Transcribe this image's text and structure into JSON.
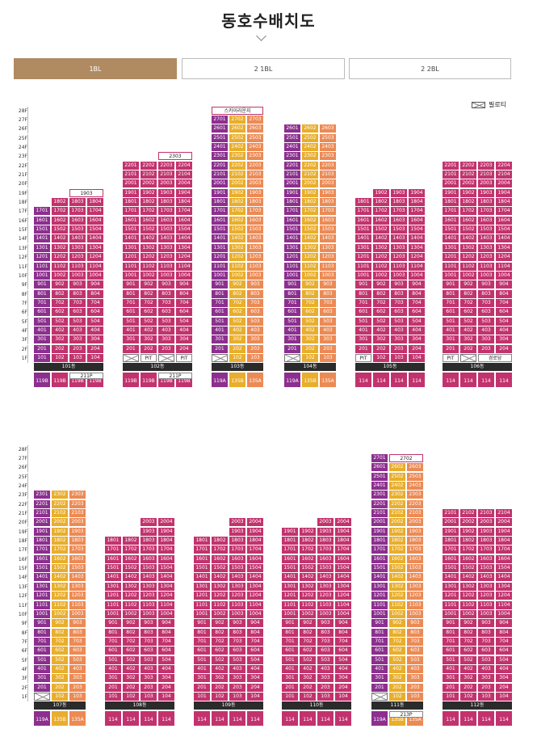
{
  "page": {
    "title": "동호수배치도"
  },
  "tabs": [
    {
      "label": "1BL",
      "active": true
    },
    {
      "label": "2 1BL",
      "active": false
    },
    {
      "label": "2 2BL",
      "active": false
    }
  ],
  "legend": {
    "label": "필로티"
  },
  "floor_axis": {
    "top": [
      "28F",
      "27F",
      "26F",
      "25F",
      "24F",
      "23F",
      "22F",
      "21F",
      "20F",
      "19F",
      "18F",
      "17F",
      "16F",
      "15F",
      "14F",
      "13F",
      "12F",
      "11F",
      "10F",
      "9F",
      "8F",
      "7F",
      "6F",
      "5F",
      "4F",
      "3F",
      "2F",
      "1F"
    ]
  },
  "colors": {
    "magenta": "#c2336e",
    "purple": "#8c2f8e",
    "orange": "#ec8a55",
    "yellow": "#e8ae2c",
    "active_tab": "#b08a61"
  },
  "rows": [
    {
      "buildings": [
        {
          "id": "101",
          "name": "101동",
          "cols": 4,
          "colors": [
            "p",
            "m",
            "m",
            "m"
          ],
          "maxF": 18,
          "minF": 1,
          "top": {
            "19": {
              "text": "1903",
              "span": 2,
              "col": 2
            }
          },
          "missing": {
            "18": [
              0
            ]
          },
          "pilotis": [],
          "types": [
            "119B",
            "119B",
            "119B",
            "119B"
          ],
          "extra": {
            "label": "211P",
            "col": 2,
            "span": 2
          }
        },
        {
          "id": "102",
          "name": "102동",
          "cols": 4,
          "colors": [
            "m",
            "m",
            "m",
            "m"
          ],
          "maxF": 22,
          "minF": 2,
          "top": {
            "23": {
              "text": "2303",
              "span": 2,
              "col": 2
            }
          },
          "missing": {},
          "pit": {
            "cols": [
              1,
              3
            ],
            "label": "PIT",
            "x": [
              0,
              2
            ]
          },
          "types": [
            "119B",
            "119B",
            "119B",
            "119B"
          ],
          "extra": {
            "label": "211P",
            "col": 2,
            "span": 2
          }
        },
        {
          "id": "103",
          "name": "103동",
          "cols": 3,
          "colors": [
            "p",
            "y",
            "o"
          ],
          "maxF": 27,
          "minF": 1,
          "top": {
            "28": {
              "text": "스카이라운지",
              "span": 3,
              "col": 0
            }
          },
          "missing": {},
          "pilotis": [
            0
          ],
          "types": [
            "119A",
            "135B",
            "135A"
          ]
        },
        {
          "id": "104",
          "name": "104동",
          "cols": 3,
          "colors": [
            "p",
            "y",
            "o"
          ],
          "maxF": 26,
          "minF": 1,
          "top": {},
          "missing": {},
          "pilotis": [
            0
          ],
          "types": [
            "119A",
            "135B",
            "135A"
          ]
        },
        {
          "id": "105",
          "name": "105동",
          "cols": 4,
          "colors": [
            "m",
            "m",
            "m",
            "m"
          ],
          "maxF": 19,
          "minF": 1,
          "top": {},
          "missing": {
            "19": [
              0
            ]
          },
          "pit": {
            "cols": [
              0
            ],
            "label": "PIT",
            "x": []
          },
          "types": [
            "114",
            "114",
            "114",
            "114"
          ]
        },
        {
          "id": "106",
          "name": "106동",
          "cols": 4,
          "colors": [
            "m",
            "m",
            "m",
            "m"
          ],
          "maxF": 22,
          "minF": 2,
          "top": {},
          "missing": {},
          "pit": {
            "cols": [
              0
            ],
            "label": "PIT",
            "x": [
              1
            ]
          },
          "extra1": {
            "label": "경로당",
            "col": 2,
            "span": 2
          },
          "types": [
            "114",
            "114",
            "114",
            "114"
          ]
        }
      ]
    },
    {
      "buildings": [
        {
          "id": "107",
          "name": "107동",
          "cols": 3,
          "colors": [
            "p",
            "y",
            "o"
          ],
          "maxF": 23,
          "minF": 1,
          "pilotis": [
            0
          ],
          "types": [
            "119A",
            "135B",
            "135A"
          ]
        },
        {
          "id": "108",
          "name": "108동",
          "cols": 4,
          "colors": [
            "m",
            "m",
            "m",
            "m"
          ],
          "maxF": 20,
          "minF": 1,
          "missing": {
            "20": [
              0,
              1
            ],
            "19": [
              0,
              1
            ]
          },
          "types": [
            "114",
            "114",
            "114",
            "114"
          ]
        },
        {
          "id": "109",
          "name": "109동",
          "cols": 4,
          "colors": [
            "m",
            "m",
            "m",
            "m"
          ],
          "maxF": 20,
          "minF": 1,
          "missing": {
            "20": [
              0,
              1
            ],
            "19": [
              0,
              1
            ]
          },
          "types": [
            "114",
            "114",
            "114",
            "114"
          ]
        },
        {
          "id": "110",
          "name": "110동",
          "cols": 4,
          "colors": [
            "m",
            "m",
            "m",
            "m"
          ],
          "maxF": 20,
          "minF": 1,
          "missing": {
            "20": [
              0,
              1
            ]
          },
          "types": [
            "114",
            "114",
            "114",
            "114"
          ]
        },
        {
          "id": "111",
          "name": "111동",
          "cols": 3,
          "colors": [
            "p",
            "y",
            "o"
          ],
          "maxF": 27,
          "minF": 1,
          "top": {
            "27": {
              "text": "2702",
              "span": 2,
              "col": 1
            }
          },
          "pilotis": [
            0
          ],
          "types": [
            "119A",
            "135B",
            "135A"
          ],
          "extra": {
            "label": "213P",
            "col": 1,
            "span": 2
          }
        },
        {
          "id": "112",
          "name": "112동",
          "cols": 4,
          "colors": [
            "m",
            "m",
            "m",
            "m"
          ],
          "maxF": 21,
          "minF": 1,
          "types": [
            "114",
            "114",
            "114",
            "114"
          ]
        }
      ]
    }
  ]
}
